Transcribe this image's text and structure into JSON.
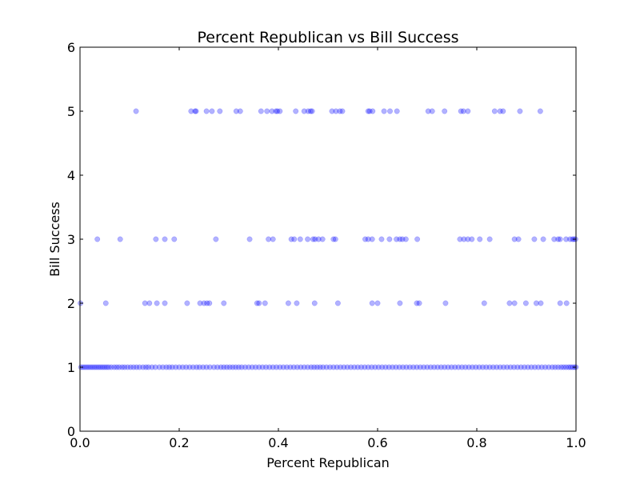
{
  "chart_data": {
    "type": "scatter",
    "title": "Percent Republican vs Bill Success",
    "xlabel": "Percent Republican",
    "ylabel": "Bill Success",
    "xlim": [
      0.0,
      1.0
    ],
    "ylim": [
      0,
      6
    ],
    "x_ticks": [
      "0.0",
      "0.2",
      "0.4",
      "0.6",
      "0.8",
      "1.0"
    ],
    "y_ticks": [
      "0",
      "1",
      "2",
      "3",
      "4",
      "5",
      "6"
    ],
    "grid": false,
    "marker_color": "#0000ff",
    "marker_alpha": 0.3,
    "series": [
      {
        "points": [
          {
            "x": 0.113,
            "y": 5
          },
          {
            "x": 0.224,
            "y": 5
          },
          {
            "x": 0.232,
            "y": 5
          },
          {
            "x": 0.234,
            "y": 5
          },
          {
            "x": 0.255,
            "y": 5
          },
          {
            "x": 0.266,
            "y": 5
          },
          {
            "x": 0.282,
            "y": 5
          },
          {
            "x": 0.315,
            "y": 5
          },
          {
            "x": 0.323,
            "y": 5
          },
          {
            "x": 0.365,
            "y": 5
          },
          {
            "x": 0.377,
            "y": 5
          },
          {
            "x": 0.387,
            "y": 5
          },
          {
            "x": 0.395,
            "y": 5
          },
          {
            "x": 0.398,
            "y": 5
          },
          {
            "x": 0.403,
            "y": 5
          },
          {
            "x": 0.435,
            "y": 5
          },
          {
            "x": 0.452,
            "y": 5
          },
          {
            "x": 0.46,
            "y": 5
          },
          {
            "x": 0.465,
            "y": 5
          },
          {
            "x": 0.468,
            "y": 5
          },
          {
            "x": 0.508,
            "y": 5
          },
          {
            "x": 0.516,
            "y": 5
          },
          {
            "x": 0.524,
            "y": 5
          },
          {
            "x": 0.529,
            "y": 5
          },
          {
            "x": 0.581,
            "y": 5
          },
          {
            "x": 0.584,
            "y": 5
          },
          {
            "x": 0.59,
            "y": 5
          },
          {
            "x": 0.613,
            "y": 5
          },
          {
            "x": 0.625,
            "y": 5
          },
          {
            "x": 0.639,
            "y": 5
          },
          {
            "x": 0.702,
            "y": 5
          },
          {
            "x": 0.71,
            "y": 5
          },
          {
            "x": 0.735,
            "y": 5
          },
          {
            "x": 0.768,
            "y": 5
          },
          {
            "x": 0.773,
            "y": 5
          },
          {
            "x": 0.782,
            "y": 5
          },
          {
            "x": 0.836,
            "y": 5
          },
          {
            "x": 0.847,
            "y": 5
          },
          {
            "x": 0.853,
            "y": 5
          },
          {
            "x": 0.887,
            "y": 5
          },
          {
            "x": 0.928,
            "y": 5
          },
          {
            "x": 0.035,
            "y": 3
          },
          {
            "x": 0.081,
            "y": 3
          },
          {
            "x": 0.153,
            "y": 3
          },
          {
            "x": 0.171,
            "y": 3
          },
          {
            "x": 0.19,
            "y": 3
          },
          {
            "x": 0.274,
            "y": 3
          },
          {
            "x": 0.342,
            "y": 3
          },
          {
            "x": 0.38,
            "y": 3
          },
          {
            "x": 0.389,
            "y": 3
          },
          {
            "x": 0.426,
            "y": 3
          },
          {
            "x": 0.432,
            "y": 3
          },
          {
            "x": 0.444,
            "y": 3
          },
          {
            "x": 0.459,
            "y": 3
          },
          {
            "x": 0.47,
            "y": 3
          },
          {
            "x": 0.474,
            "y": 3
          },
          {
            "x": 0.481,
            "y": 3
          },
          {
            "x": 0.489,
            "y": 3
          },
          {
            "x": 0.511,
            "y": 3
          },
          {
            "x": 0.515,
            "y": 3
          },
          {
            "x": 0.575,
            "y": 3
          },
          {
            "x": 0.581,
            "y": 3
          },
          {
            "x": 0.589,
            "y": 3
          },
          {
            "x": 0.608,
            "y": 3
          },
          {
            "x": 0.624,
            "y": 3
          },
          {
            "x": 0.638,
            "y": 3
          },
          {
            "x": 0.645,
            "y": 3
          },
          {
            "x": 0.65,
            "y": 3
          },
          {
            "x": 0.657,
            "y": 3
          },
          {
            "x": 0.68,
            "y": 3
          },
          {
            "x": 0.766,
            "y": 3
          },
          {
            "x": 0.774,
            "y": 3
          },
          {
            "x": 0.782,
            "y": 3
          },
          {
            "x": 0.79,
            "y": 3
          },
          {
            "x": 0.806,
            "y": 3
          },
          {
            "x": 0.826,
            "y": 3
          },
          {
            "x": 0.876,
            "y": 3
          },
          {
            "x": 0.884,
            "y": 3
          },
          {
            "x": 0.916,
            "y": 3
          },
          {
            "x": 0.934,
            "y": 3
          },
          {
            "x": 0.956,
            "y": 3
          },
          {
            "x": 0.964,
            "y": 3
          },
          {
            "x": 0.968,
            "y": 3
          },
          {
            "x": 0.98,
            "y": 3
          },
          {
            "x": 0.988,
            "y": 3
          },
          {
            "x": 0.993,
            "y": 3
          },
          {
            "x": 0.996,
            "y": 3
          },
          {
            "x": 0.999,
            "y": 3
          },
          {
            "x": 0.001,
            "y": 2
          },
          {
            "x": 0.052,
            "y": 2
          },
          {
            "x": 0.131,
            "y": 2
          },
          {
            "x": 0.14,
            "y": 2
          },
          {
            "x": 0.155,
            "y": 2
          },
          {
            "x": 0.171,
            "y": 2
          },
          {
            "x": 0.216,
            "y": 2
          },
          {
            "x": 0.242,
            "y": 2
          },
          {
            "x": 0.25,
            "y": 2
          },
          {
            "x": 0.256,
            "y": 2
          },
          {
            "x": 0.261,
            "y": 2
          },
          {
            "x": 0.29,
            "y": 2
          },
          {
            "x": 0.357,
            "y": 2
          },
          {
            "x": 0.361,
            "y": 2
          },
          {
            "x": 0.373,
            "y": 2
          },
          {
            "x": 0.42,
            "y": 2
          },
          {
            "x": 0.437,
            "y": 2
          },
          {
            "x": 0.473,
            "y": 2
          },
          {
            "x": 0.52,
            "y": 2
          },
          {
            "x": 0.589,
            "y": 2
          },
          {
            "x": 0.6,
            "y": 2
          },
          {
            "x": 0.645,
            "y": 2
          },
          {
            "x": 0.679,
            "y": 2
          },
          {
            "x": 0.684,
            "y": 2
          },
          {
            "x": 0.737,
            "y": 2
          },
          {
            "x": 0.815,
            "y": 2
          },
          {
            "x": 0.866,
            "y": 2
          },
          {
            "x": 0.876,
            "y": 2
          },
          {
            "x": 0.899,
            "y": 2
          },
          {
            "x": 0.92,
            "y": 2
          },
          {
            "x": 0.929,
            "y": 2
          },
          {
            "x": 0.968,
            "y": 2
          },
          {
            "x": 0.981,
            "y": 2
          },
          {
            "x": 0.002,
            "y": 1
          },
          {
            "x": 0.006,
            "y": 1
          },
          {
            "x": 0.01,
            "y": 1
          },
          {
            "x": 0.014,
            "y": 1
          },
          {
            "x": 0.018,
            "y": 1
          },
          {
            "x": 0.022,
            "y": 1
          },
          {
            "x": 0.026,
            "y": 1
          },
          {
            "x": 0.03,
            "y": 1
          },
          {
            "x": 0.034,
            "y": 1
          },
          {
            "x": 0.038,
            "y": 1
          },
          {
            "x": 0.042,
            "y": 1
          },
          {
            "x": 0.046,
            "y": 1
          },
          {
            "x": 0.05,
            "y": 1
          },
          {
            "x": 0.054,
            "y": 1
          },
          {
            "x": 0.058,
            "y": 1
          },
          {
            "x": 0.063,
            "y": 1
          },
          {
            "x": 0.069,
            "y": 1
          },
          {
            "x": 0.074,
            "y": 1
          },
          {
            "x": 0.079,
            "y": 1
          },
          {
            "x": 0.085,
            "y": 1
          },
          {
            "x": 0.09,
            "y": 1
          },
          {
            "x": 0.096,
            "y": 1
          },
          {
            "x": 0.102,
            "y": 1
          },
          {
            "x": 0.108,
            "y": 1
          },
          {
            "x": 0.114,
            "y": 1
          },
          {
            "x": 0.12,
            "y": 1
          },
          {
            "x": 0.127,
            "y": 1
          },
          {
            "x": 0.133,
            "y": 1
          },
          {
            "x": 0.138,
            "y": 1
          },
          {
            "x": 0.145,
            "y": 1
          },
          {
            "x": 0.152,
            "y": 1
          },
          {
            "x": 0.16,
            "y": 1
          },
          {
            "x": 0.167,
            "y": 1
          },
          {
            "x": 0.174,
            "y": 1
          },
          {
            "x": 0.18,
            "y": 1
          },
          {
            "x": 0.186,
            "y": 1
          },
          {
            "x": 0.193,
            "y": 1
          },
          {
            "x": 0.2,
            "y": 1
          },
          {
            "x": 0.207,
            "y": 1
          },
          {
            "x": 0.214,
            "y": 1
          },
          {
            "x": 0.221,
            "y": 1
          },
          {
            "x": 0.228,
            "y": 1
          },
          {
            "x": 0.235,
            "y": 1
          },
          {
            "x": 0.241,
            "y": 1
          },
          {
            "x": 0.248,
            "y": 1
          },
          {
            "x": 0.255,
            "y": 1
          },
          {
            "x": 0.262,
            "y": 1
          },
          {
            "x": 0.27,
            "y": 1
          },
          {
            "x": 0.277,
            "y": 1
          },
          {
            "x": 0.284,
            "y": 1
          },
          {
            "x": 0.29,
            "y": 1
          },
          {
            "x": 0.296,
            "y": 1
          },
          {
            "x": 0.302,
            "y": 1
          },
          {
            "x": 0.308,
            "y": 1
          },
          {
            "x": 0.314,
            "y": 1
          },
          {
            "x": 0.32,
            "y": 1
          },
          {
            "x": 0.326,
            "y": 1
          },
          {
            "x": 0.333,
            "y": 1
          },
          {
            "x": 0.34,
            "y": 1
          },
          {
            "x": 0.347,
            "y": 1
          },
          {
            "x": 0.354,
            "y": 1
          },
          {
            "x": 0.361,
            "y": 1
          },
          {
            "x": 0.368,
            "y": 1
          },
          {
            "x": 0.375,
            "y": 1
          },
          {
            "x": 0.382,
            "y": 1
          },
          {
            "x": 0.389,
            "y": 1
          },
          {
            "x": 0.396,
            "y": 1
          },
          {
            "x": 0.403,
            "y": 1
          },
          {
            "x": 0.41,
            "y": 1
          },
          {
            "x": 0.417,
            "y": 1
          },
          {
            "x": 0.424,
            "y": 1
          },
          {
            "x": 0.431,
            "y": 1
          },
          {
            "x": 0.438,
            "y": 1
          },
          {
            "x": 0.445,
            "y": 1
          },
          {
            "x": 0.452,
            "y": 1
          },
          {
            "x": 0.459,
            "y": 1
          },
          {
            "x": 0.466,
            "y": 1
          },
          {
            "x": 0.472,
            "y": 1
          },
          {
            "x": 0.478,
            "y": 1
          },
          {
            "x": 0.484,
            "y": 1
          },
          {
            "x": 0.49,
            "y": 1
          },
          {
            "x": 0.497,
            "y": 1
          },
          {
            "x": 0.504,
            "y": 1
          },
          {
            "x": 0.511,
            "y": 1
          },
          {
            "x": 0.518,
            "y": 1
          },
          {
            "x": 0.525,
            "y": 1
          },
          {
            "x": 0.532,
            "y": 1
          },
          {
            "x": 0.539,
            "y": 1
          },
          {
            "x": 0.546,
            "y": 1
          },
          {
            "x": 0.553,
            "y": 1
          },
          {
            "x": 0.56,
            "y": 1
          },
          {
            "x": 0.567,
            "y": 1
          },
          {
            "x": 0.574,
            "y": 1
          },
          {
            "x": 0.581,
            "y": 1
          },
          {
            "x": 0.588,
            "y": 1
          },
          {
            "x": 0.595,
            "y": 1
          },
          {
            "x": 0.602,
            "y": 1
          },
          {
            "x": 0.609,
            "y": 1
          },
          {
            "x": 0.616,
            "y": 1
          },
          {
            "x": 0.623,
            "y": 1
          },
          {
            "x": 0.63,
            "y": 1
          },
          {
            "x": 0.637,
            "y": 1
          },
          {
            "x": 0.644,
            "y": 1
          },
          {
            "x": 0.651,
            "y": 1
          },
          {
            "x": 0.658,
            "y": 1
          },
          {
            "x": 0.665,
            "y": 1
          },
          {
            "x": 0.672,
            "y": 1
          },
          {
            "x": 0.679,
            "y": 1
          },
          {
            "x": 0.686,
            "y": 1
          },
          {
            "x": 0.693,
            "y": 1
          },
          {
            "x": 0.7,
            "y": 1
          },
          {
            "x": 0.707,
            "y": 1
          },
          {
            "x": 0.714,
            "y": 1
          },
          {
            "x": 0.721,
            "y": 1
          },
          {
            "x": 0.728,
            "y": 1
          },
          {
            "x": 0.735,
            "y": 1
          },
          {
            "x": 0.742,
            "y": 1
          },
          {
            "x": 0.749,
            "y": 1
          },
          {
            "x": 0.756,
            "y": 1
          },
          {
            "x": 0.763,
            "y": 1
          },
          {
            "x": 0.77,
            "y": 1
          },
          {
            "x": 0.777,
            "y": 1
          },
          {
            "x": 0.784,
            "y": 1
          },
          {
            "x": 0.791,
            "y": 1
          },
          {
            "x": 0.798,
            "y": 1
          },
          {
            "x": 0.805,
            "y": 1
          },
          {
            "x": 0.812,
            "y": 1
          },
          {
            "x": 0.819,
            "y": 1
          },
          {
            "x": 0.826,
            "y": 1
          },
          {
            "x": 0.833,
            "y": 1
          },
          {
            "x": 0.84,
            "y": 1
          },
          {
            "x": 0.847,
            "y": 1
          },
          {
            "x": 0.854,
            "y": 1
          },
          {
            "x": 0.861,
            "y": 1
          },
          {
            "x": 0.868,
            "y": 1
          },
          {
            "x": 0.875,
            "y": 1
          },
          {
            "x": 0.882,
            "y": 1
          },
          {
            "x": 0.889,
            "y": 1
          },
          {
            "x": 0.896,
            "y": 1
          },
          {
            "x": 0.903,
            "y": 1
          },
          {
            "x": 0.91,
            "y": 1
          },
          {
            "x": 0.917,
            "y": 1
          },
          {
            "x": 0.924,
            "y": 1
          },
          {
            "x": 0.931,
            "y": 1
          },
          {
            "x": 0.938,
            "y": 1
          },
          {
            "x": 0.945,
            "y": 1
          },
          {
            "x": 0.952,
            "y": 1
          },
          {
            "x": 0.958,
            "y": 1
          },
          {
            "x": 0.964,
            "y": 1
          },
          {
            "x": 0.97,
            "y": 1
          },
          {
            "x": 0.975,
            "y": 1
          },
          {
            "x": 0.98,
            "y": 1
          },
          {
            "x": 0.985,
            "y": 1
          },
          {
            "x": 0.989,
            "y": 1
          },
          {
            "x": 0.993,
            "y": 1
          },
          {
            "x": 0.997,
            "y": 1
          },
          {
            "x": 1.0,
            "y": 1
          }
        ]
      }
    ]
  }
}
